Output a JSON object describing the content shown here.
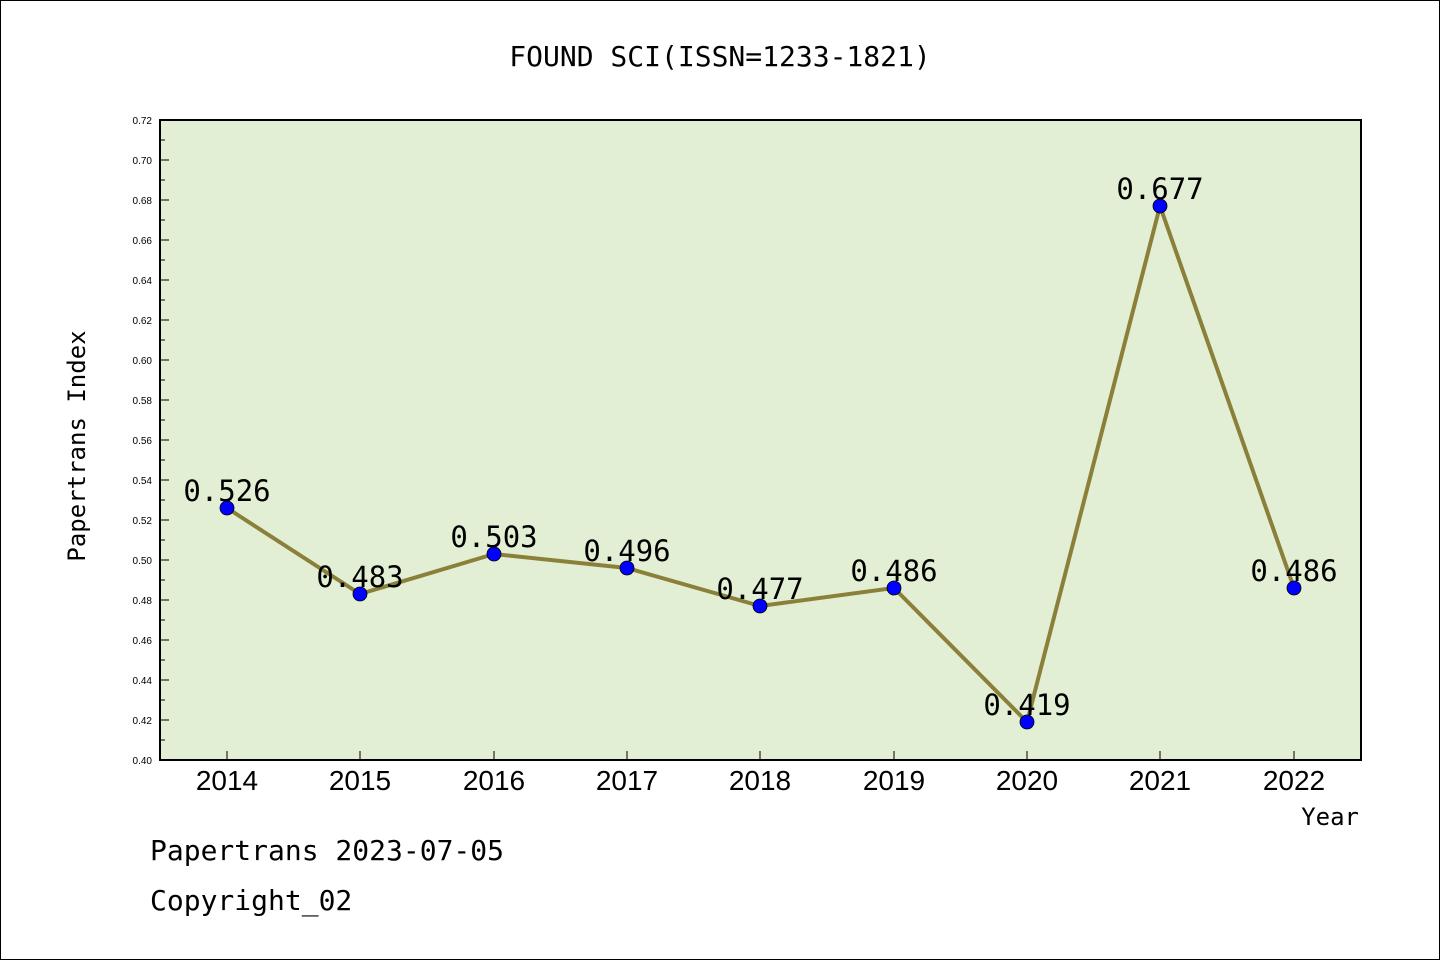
{
  "chart_data": {
    "type": "line",
    "title": "FOUND SCI(ISSN=1233-1821)",
    "xlabel": "Year",
    "ylabel": "Papertrans Index",
    "categories": [
      "2014",
      "2015",
      "2016",
      "2017",
      "2018",
      "2019",
      "2020",
      "2021",
      "2022"
    ],
    "values": [
      0.526,
      0.483,
      0.503,
      0.496,
      0.477,
      0.486,
      0.419,
      0.677,
      0.486
    ],
    "data_labels": [
      "0.526",
      "0.483",
      "0.503",
      "0.496",
      "0.477",
      "0.486",
      "0.419",
      "0.677",
      "0.486"
    ],
    "ylim": [
      0.4,
      0.72
    ],
    "yticks": [
      "0.40",
      "0.42",
      "0.44",
      "0.46",
      "0.48",
      "0.50",
      "0.52",
      "0.54",
      "0.56",
      "0.58",
      "0.60",
      "0.62",
      "0.64",
      "0.66",
      "0.68",
      "0.70",
      "0.72"
    ],
    "grid": false,
    "colors": {
      "plot_background": "#e2efd4",
      "line": "#8b803a",
      "marker": "#0000ff"
    }
  },
  "footer": {
    "line1": "Papertrans 2023-07-05",
    "line2": "Copyright_02"
  }
}
